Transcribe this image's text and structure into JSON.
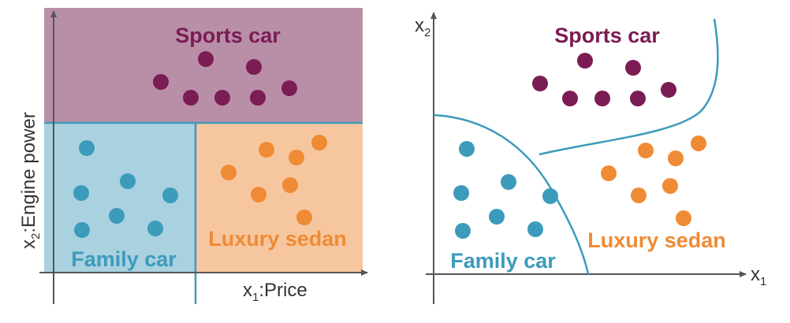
{
  "colors": {
    "sports": "#7b1c54",
    "sports_bg": "#b98fa7",
    "family": "#3c9bbb",
    "family_bg": "#a9d1df",
    "luxury": "#ef8b35",
    "luxury_bg": "#f6c79f",
    "axis": "#555555",
    "boundary": "#3c9bbb"
  },
  "left_panel": {
    "sports_label": "Sports car",
    "family_label": "Family car",
    "luxury_label": "Luxury sedan",
    "x_axis_label": {
      "prefix": "x",
      "sub": "1",
      "suffix": ":Price"
    },
    "y_axis_label": {
      "prefix": "x",
      "sub": "2",
      "suffix": ":Engine power"
    }
  },
  "right_panel": {
    "sports_label": "Sports car",
    "family_label": "Family car",
    "luxury_label": "Luxury sedan",
    "x_axis_label": {
      "prefix": "x",
      "sub": "1"
    },
    "y_axis_label": {
      "prefix": "x",
      "sub": "2"
    }
  }
}
